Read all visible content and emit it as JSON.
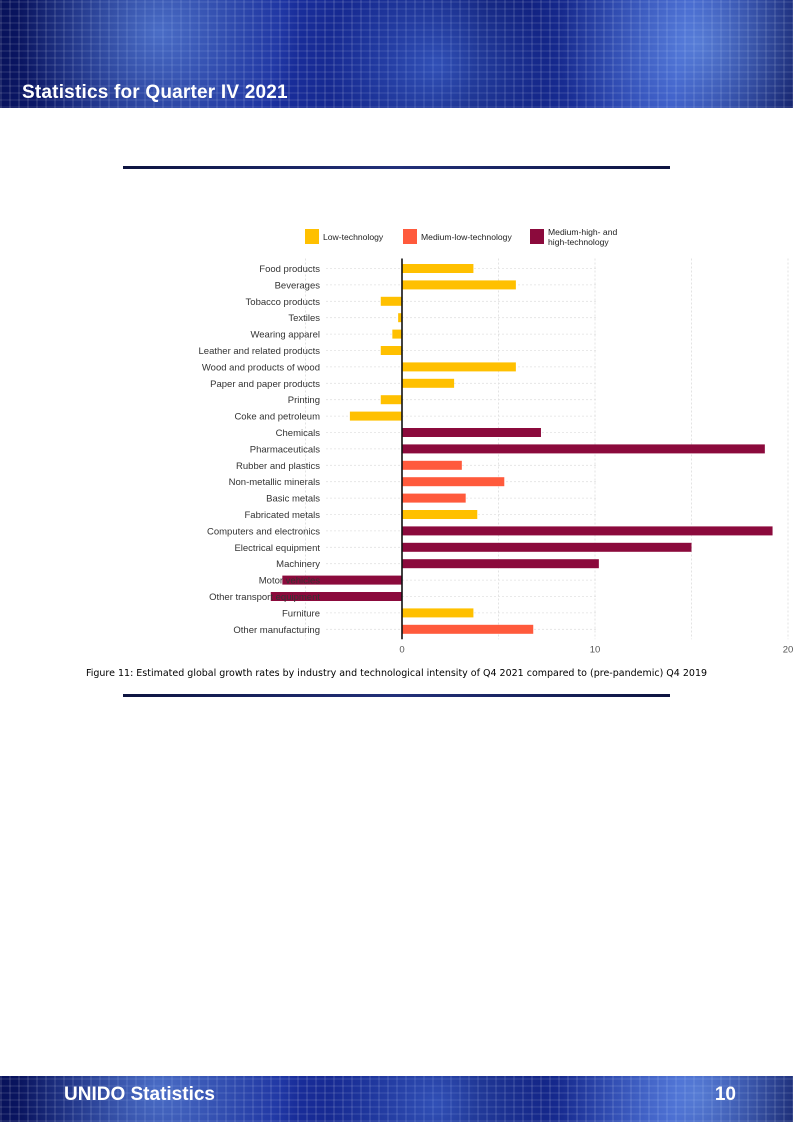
{
  "header": {
    "title": "Statistics for Quarter IV 2021"
  },
  "footer": {
    "left": "UNIDO Statistics",
    "page_number": "10"
  },
  "figure": {
    "caption": "Figure 11: Estimated global growth rates by industry and technological intensity of Q4 2021 compared to (pre-pandemic) Q4 2019"
  },
  "colors": {
    "low": "#FFC000",
    "medium_low": "#FF5A3C",
    "high": "#8B0A3C"
  },
  "chart_data": {
    "type": "bar",
    "orientation": "horizontal",
    "title": "",
    "xlabel": "",
    "ylabel": "",
    "xlim": [
      -8.5,
      20.5
    ],
    "xticks": [
      0,
      10,
      20
    ],
    "grid": true,
    "legend_position": "top",
    "legend": [
      {
        "key": "low",
        "label": "Low-technology"
      },
      {
        "key": "medium_low",
        "label": "Medium-low-technology"
      },
      {
        "key": "high",
        "label": "Medium-high- and high-technology"
      }
    ],
    "categories": [
      "Food products",
      "Beverages",
      "Tobacco products",
      "Textiles",
      "Wearing apparel",
      "Leather and related products",
      "Wood and products of wood",
      "Paper and paper products",
      "Printing",
      "Coke and petroleum",
      "Chemicals",
      "Pharmaceuticals",
      "Rubber and plastics",
      "Non-metallic minerals",
      "Basic metals",
      "Fabricated metals",
      "Computers and electronics",
      "Electrical equipment",
      "Machinery",
      "Motor vehicles",
      "Other transport equipment",
      "Furniture",
      "Other manufacturing"
    ],
    "values": [
      3.7,
      5.9,
      -1.1,
      -0.2,
      -0.5,
      -1.1,
      5.9,
      2.7,
      -1.1,
      -2.7,
      7.2,
      18.8,
      3.1,
      5.3,
      3.3,
      3.9,
      19.2,
      15.0,
      10.2,
      -6.2,
      -6.8,
      3.7,
      6.8
    ],
    "technology": [
      "low",
      "low",
      "low",
      "low",
      "low",
      "low",
      "low",
      "low",
      "low",
      "low",
      "high",
      "high",
      "medium_low",
      "medium_low",
      "medium_low",
      "low",
      "high",
      "high",
      "high",
      "high",
      "high",
      "low",
      "medium_low"
    ]
  }
}
